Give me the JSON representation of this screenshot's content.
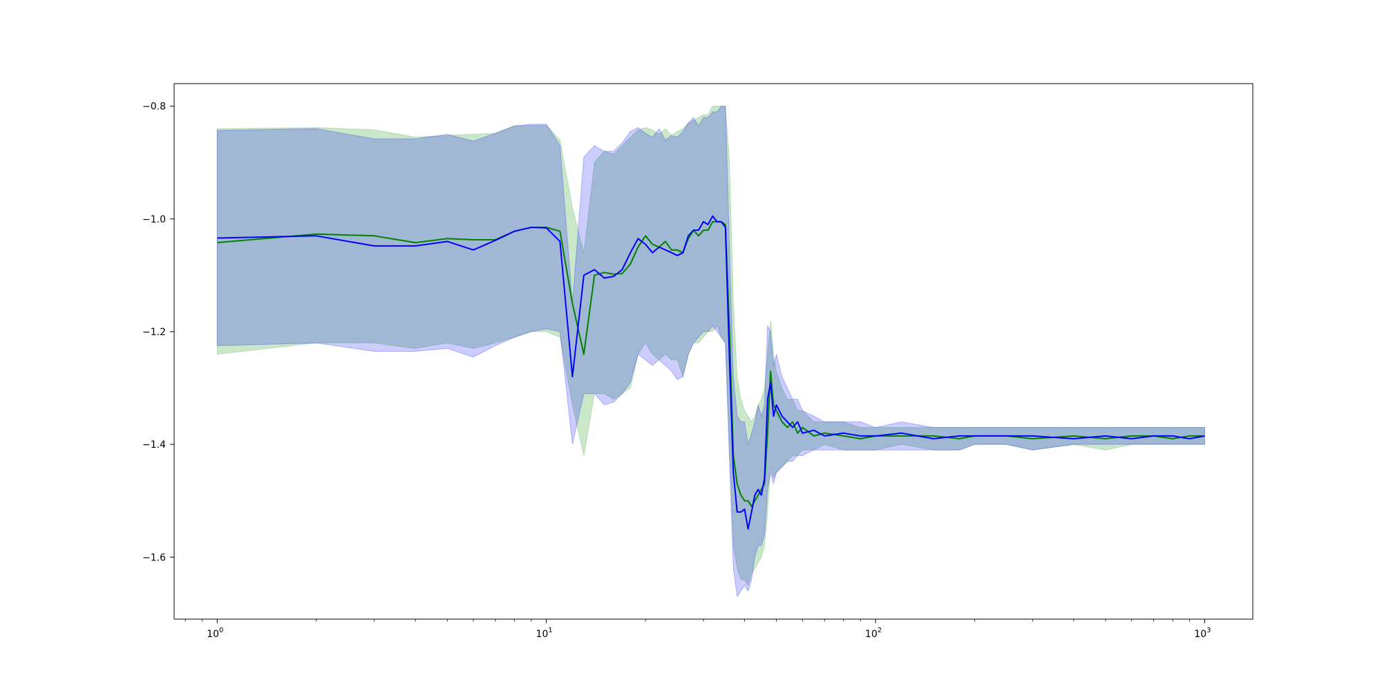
{
  "chart_data": {
    "type": "line",
    "title": "",
    "xlabel": "",
    "ylabel": "",
    "x_scale": "log",
    "xlim": [
      0.74,
      1400
    ],
    "ylim": [
      -1.71,
      -0.76
    ],
    "grid": false,
    "legend": "none",
    "x_ticks": [
      {
        "value": 1,
        "base": "10",
        "exp": "0"
      },
      {
        "value": 10,
        "base": "10",
        "exp": "1"
      },
      {
        "value": 100,
        "base": "10",
        "exp": "2"
      },
      {
        "value": 1000,
        "base": "10",
        "exp": "3"
      }
    ],
    "y_ticks": [
      {
        "value": -0.8,
        "label": "−0.8"
      },
      {
        "value": -1.0,
        "label": "−1.0"
      },
      {
        "value": -1.2,
        "label": "−1.2"
      },
      {
        "value": -1.4,
        "label": "−1.4"
      },
      {
        "value": -1.6,
        "label": "−1.6"
      }
    ],
    "series": [
      {
        "color": "#008000",
        "band_color": "#2ca02c",
        "x": [
          1,
          2,
          3,
          4,
          5,
          6,
          7,
          8,
          9,
          10,
          11,
          12,
          13,
          14,
          15,
          16,
          17,
          18,
          19,
          20,
          21,
          22,
          23,
          24,
          25,
          26,
          27,
          28,
          29,
          30,
          31,
          32,
          33,
          34,
          35,
          36,
          37,
          38,
          39,
          40,
          41,
          42,
          43,
          44,
          45,
          46,
          47,
          48,
          49,
          50,
          52,
          54,
          56,
          58,
          60,
          65,
          70,
          80,
          90,
          100,
          120,
          150,
          180,
          200,
          250,
          300,
          400,
          500,
          600,
          700,
          800,
          900,
          1000
        ],
        "y": [
          -1.042,
          -1.027,
          -1.03,
          -1.042,
          -1.035,
          -1.037,
          -1.037,
          -1.022,
          -1.015,
          -1.015,
          -1.022,
          -1.15,
          -1.24,
          -1.1,
          -1.095,
          -1.098,
          -1.097,
          -1.08,
          -1.05,
          -1.03,
          -1.045,
          -1.05,
          -1.04,
          -1.055,
          -1.055,
          -1.06,
          -1.035,
          -1.02,
          -1.03,
          -1.02,
          -1.02,
          -1.005,
          -1.005,
          -1.005,
          -1.01,
          -1.2,
          -1.42,
          -1.47,
          -1.49,
          -1.5,
          -1.5,
          -1.51,
          -1.5,
          -1.49,
          -1.48,
          -1.47,
          -1.38,
          -1.27,
          -1.33,
          -1.34,
          -1.36,
          -1.37,
          -1.36,
          -1.38,
          -1.37,
          -1.385,
          -1.38,
          -1.385,
          -1.39,
          -1.385,
          -1.385,
          -1.385,
          -1.39,
          -1.385,
          -1.385,
          -1.39,
          -1.385,
          -1.39,
          -1.385,
          -1.385,
          -1.39,
          -1.385,
          -1.385
        ],
        "lower": [
          -1.24,
          -1.22,
          -1.22,
          -1.23,
          -1.22,
          -1.23,
          -1.22,
          -1.21,
          -1.2,
          -1.2,
          -1.21,
          -1.33,
          -1.42,
          -1.31,
          -1.31,
          -1.32,
          -1.31,
          -1.3,
          -1.24,
          -1.22,
          -1.24,
          -1.25,
          -1.24,
          -1.25,
          -1.25,
          -1.28,
          -1.24,
          -1.22,
          -1.22,
          -1.21,
          -1.2,
          -1.2,
          -1.19,
          -1.21,
          -1.22,
          -1.4,
          -1.58,
          -1.62,
          -1.64,
          -1.64,
          -1.65,
          -1.63,
          -1.62,
          -1.61,
          -1.6,
          -1.58,
          -1.52,
          -1.44,
          -1.46,
          -1.45,
          -1.44,
          -1.43,
          -1.42,
          -1.42,
          -1.41,
          -1.41,
          -1.4,
          -1.41,
          -1.41,
          -1.41,
          -1.4,
          -1.41,
          -1.41,
          -1.4,
          -1.4,
          -1.41,
          -1.4,
          -1.41,
          -1.4,
          -1.4,
          -1.4,
          -1.4,
          -1.4
        ],
        "upper": [
          -0.84,
          -0.838,
          -0.842,
          -0.855,
          -0.852,
          -0.85,
          -0.848,
          -0.835,
          -0.834,
          -0.834,
          -0.86,
          -0.98,
          -1.06,
          -0.9,
          -0.88,
          -0.885,
          -0.87,
          -0.855,
          -0.842,
          -0.838,
          -0.842,
          -0.85,
          -0.84,
          -0.852,
          -0.845,
          -0.84,
          -0.83,
          -0.825,
          -0.82,
          -0.815,
          -0.815,
          -0.8,
          -0.8,
          -0.8,
          -0.8,
          -0.9,
          -1.15,
          -1.28,
          -1.32,
          -1.34,
          -1.35,
          -1.36,
          -1.35,
          -1.33,
          -1.32,
          -1.3,
          -1.24,
          -1.18,
          -1.24,
          -1.27,
          -1.3,
          -1.32,
          -1.32,
          -1.34,
          -1.34,
          -1.36,
          -1.36,
          -1.36,
          -1.37,
          -1.37,
          -1.37,
          -1.37,
          -1.37,
          -1.37,
          -1.37,
          -1.37,
          -1.37,
          -1.37,
          -1.37,
          -1.37,
          -1.37,
          -1.37,
          -1.37
        ]
      },
      {
        "color": "#0000ff",
        "band_color": "#0000ff",
        "x": [
          1,
          2,
          3,
          4,
          5,
          6,
          7,
          8,
          9,
          10,
          11,
          12,
          13,
          14,
          15,
          16,
          17,
          18,
          19,
          20,
          21,
          22,
          23,
          24,
          25,
          26,
          27,
          28,
          29,
          30,
          31,
          32,
          33,
          34,
          35,
          36,
          37,
          38,
          39,
          40,
          41,
          42,
          43,
          44,
          45,
          46,
          47,
          48,
          49,
          50,
          52,
          54,
          56,
          58,
          60,
          65,
          70,
          80,
          90,
          100,
          120,
          150,
          180,
          200,
          250,
          300,
          400,
          500,
          600,
          700,
          800,
          900,
          1000
        ],
        "y": [
          -1.034,
          -1.03,
          -1.048,
          -1.048,
          -1.04,
          -1.055,
          -1.038,
          -1.022,
          -1.015,
          -1.016,
          -1.04,
          -1.28,
          -1.1,
          -1.09,
          -1.105,
          -1.102,
          -1.09,
          -1.06,
          -1.035,
          -1.045,
          -1.06,
          -1.05,
          -1.055,
          -1.06,
          -1.065,
          -1.06,
          -1.03,
          -1.02,
          -1.02,
          -1.005,
          -1.01,
          -0.995,
          -1.005,
          -1.005,
          -1.015,
          -1.25,
          -1.45,
          -1.52,
          -1.52,
          -1.515,
          -1.55,
          -1.52,
          -1.49,
          -1.48,
          -1.49,
          -1.46,
          -1.32,
          -1.29,
          -1.35,
          -1.33,
          -1.35,
          -1.36,
          -1.37,
          -1.36,
          -1.38,
          -1.375,
          -1.385,
          -1.38,
          -1.385,
          -1.385,
          -1.38,
          -1.39,
          -1.385,
          -1.385,
          -1.385,
          -1.385,
          -1.39,
          -1.385,
          -1.39,
          -1.385,
          -1.385,
          -1.39,
          -1.385
        ],
        "lower": [
          -1.225,
          -1.22,
          -1.235,
          -1.235,
          -1.23,
          -1.245,
          -1.225,
          -1.21,
          -1.2,
          -1.195,
          -1.2,
          -1.4,
          -1.31,
          -1.31,
          -1.33,
          -1.325,
          -1.31,
          -1.29,
          -1.24,
          -1.25,
          -1.26,
          -1.25,
          -1.26,
          -1.27,
          -1.285,
          -1.28,
          -1.24,
          -1.22,
          -1.21,
          -1.2,
          -1.2,
          -1.19,
          -1.2,
          -1.21,
          -1.22,
          -1.43,
          -1.62,
          -1.67,
          -1.66,
          -1.65,
          -1.66,
          -1.64,
          -1.6,
          -1.58,
          -1.58,
          -1.56,
          -1.48,
          -1.45,
          -1.47,
          -1.45,
          -1.44,
          -1.43,
          -1.43,
          -1.42,
          -1.42,
          -1.41,
          -1.41,
          -1.41,
          -1.41,
          -1.41,
          -1.41,
          -1.41,
          -1.41,
          -1.4,
          -1.4,
          -1.41,
          -1.4,
          -1.4,
          -1.4,
          -1.4,
          -1.4,
          -1.4,
          -1.4
        ],
        "upper": [
          -0.843,
          -0.84,
          -0.858,
          -0.858,
          -0.85,
          -0.862,
          -0.848,
          -0.835,
          -0.832,
          -0.832,
          -0.87,
          -1.15,
          -0.89,
          -0.87,
          -0.88,
          -0.88,
          -0.865,
          -0.845,
          -0.838,
          -0.848,
          -0.855,
          -0.84,
          -0.86,
          -0.852,
          -0.855,
          -0.845,
          -0.83,
          -0.82,
          -0.835,
          -0.82,
          -0.82,
          -0.81,
          -0.81,
          -0.8,
          -0.8,
          -1.05,
          -1.28,
          -1.35,
          -1.36,
          -1.36,
          -1.4,
          -1.38,
          -1.36,
          -1.33,
          -1.35,
          -1.33,
          -1.19,
          -1.2,
          -1.26,
          -1.24,
          -1.28,
          -1.3,
          -1.32,
          -1.32,
          -1.34,
          -1.35,
          -1.36,
          -1.36,
          -1.36,
          -1.37,
          -1.36,
          -1.37,
          -1.37,
          -1.37,
          -1.37,
          -1.37,
          -1.37,
          -1.37,
          -1.37,
          -1.37,
          -1.37,
          -1.37,
          -1.37
        ]
      }
    ]
  }
}
